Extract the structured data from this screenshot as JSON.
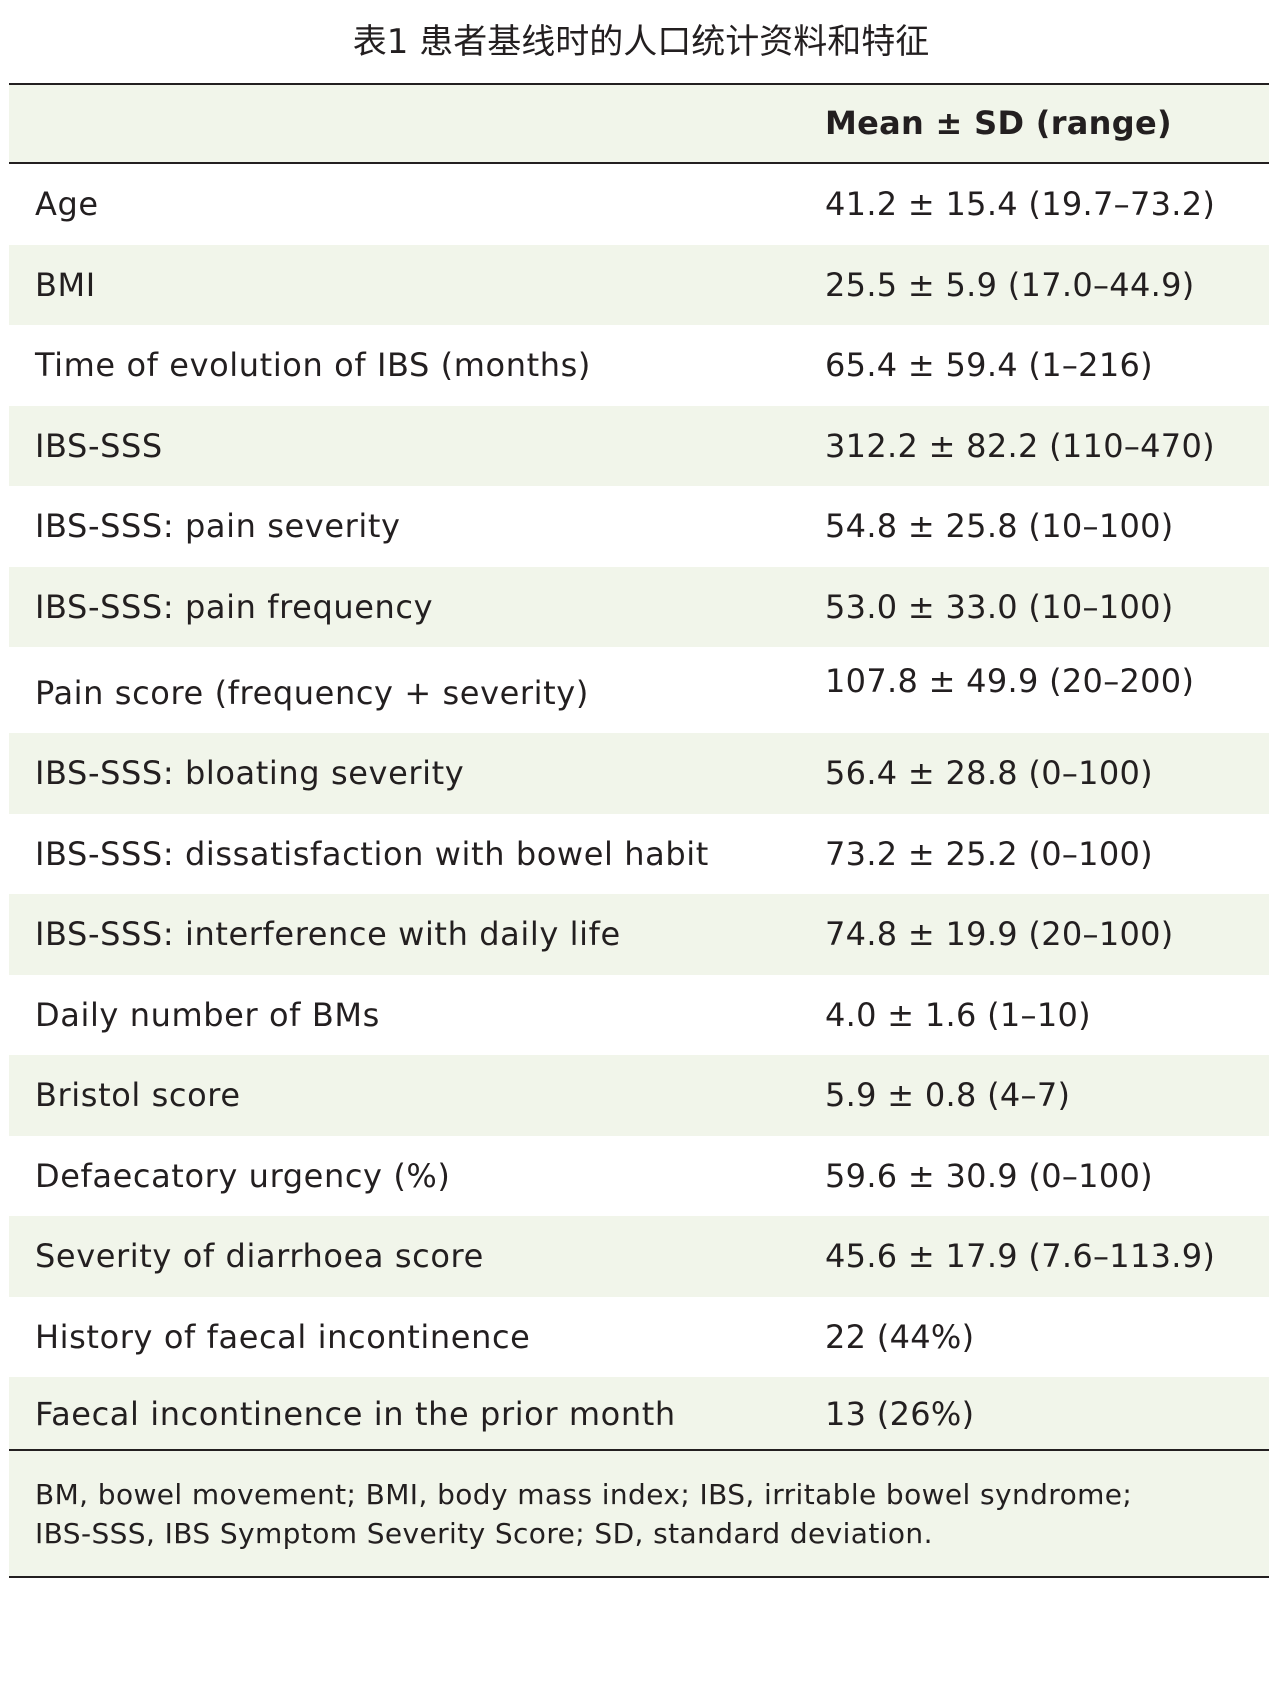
{
  "title": "表1 患者基线时的人口统计资料和特征",
  "table": {
    "header": {
      "label_col": "",
      "value_col": "Mean ± SD (range)"
    },
    "rows": [
      {
        "label": "Age",
        "value": "41.2 ± 15.4 (19.7–73.2)"
      },
      {
        "label": "BMI",
        "value": "25.5 ± 5.9 (17.0–44.9)"
      },
      {
        "label": "Time of evolution of IBS (months)",
        "value": "65.4 ± 59.4 (1–216)"
      },
      {
        "label": "IBS-SSS",
        "value": "312.2 ± 82.2 (110–470)"
      },
      {
        "label": "IBS-SSS: pain severity",
        "value": "54.8 ± 25.8 (10–100)"
      },
      {
        "label": "IBS-SSS: pain frequency",
        "value": "53.0 ± 33.0 (10–100)"
      },
      {
        "label": "Pain score (frequency + severity)",
        "value": "107.8 ± 49.9 (20–200)"
      },
      {
        "label": "IBS-SSS: bloating severity",
        "value": "56.4 ± 28.8 (0–100)"
      },
      {
        "label": "IBS-SSS: dissatisfaction with bowel habit",
        "value": "73.2 ± 25.2 (0–100)"
      },
      {
        "label": "IBS-SSS: interference with daily life",
        "value": "74.8 ± 19.9 (20–100)"
      },
      {
        "label": "Daily number of BMs",
        "value": "4.0 ± 1.6 (1–10)"
      },
      {
        "label": "Bristol score",
        "value": "5.9 ± 0.8 (4–7)"
      },
      {
        "label": "Defaecatory urgency (%)",
        "value": "59.6 ± 30.9 (0–100)"
      },
      {
        "label": "Severity of diarrhoea score",
        "value": "45.6 ± 17.9 (7.6–113.9)"
      },
      {
        "label": "History of faecal incontinence",
        "value": "22 (44%)"
      },
      {
        "label": "Faecal incontinence in the prior month",
        "value": "13 (26%)"
      }
    ],
    "footnote": {
      "line1": "BM, bowel movement; BMI, body mass index; IBS, irritable bowel syndrome;",
      "line2": "IBS-SSS, IBS Symptom Severity Score; SD, standard deviation."
    }
  }
}
